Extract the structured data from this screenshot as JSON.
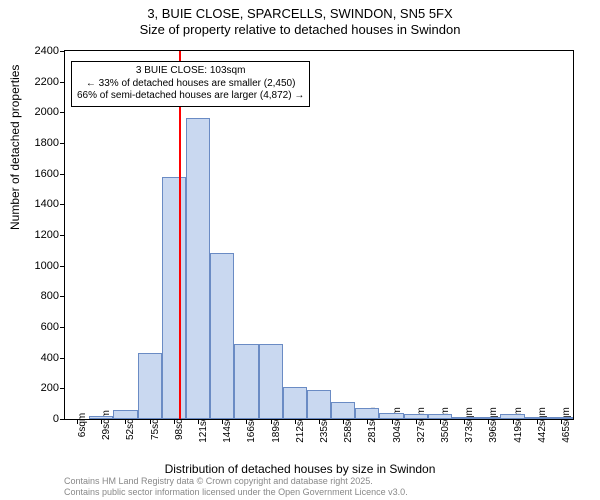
{
  "title": {
    "line1": "3, BUIE CLOSE, SPARCELLS, SWINDON, SN5 5FX",
    "line2": "Size of property relative to detached houses in Swindon"
  },
  "ylabel": "Number of detached properties",
  "xlabel": "Distribution of detached houses by size in Swindon",
  "attribution": {
    "line1": "Contains HM Land Registry data © Crown copyright and database right 2025.",
    "line2": "Contains public sector information licensed under the Open Government Licence v3.0."
  },
  "chart": {
    "type": "histogram",
    "background_color": "#ffffff",
    "border_color": "#000000",
    "bar_fill": "#c9d8f0",
    "bar_stroke": "#6a8bc4",
    "vline_color": "#ff0000",
    "ylim": [
      0,
      2400
    ],
    "yticks": [
      0,
      200,
      400,
      600,
      800,
      1000,
      1200,
      1400,
      1600,
      1800,
      2000,
      2200,
      2400
    ],
    "xticks": [
      "6sqm",
      "29sqm",
      "52sqm",
      "75sqm",
      "98sqm",
      "121sqm",
      "144sqm",
      "166sqm",
      "189sqm",
      "212sqm",
      "235sqm",
      "258sqm",
      "281sqm",
      "304sqm",
      "327sqm",
      "350sqm",
      "373sqm",
      "396sqm",
      "419sqm",
      "442sqm",
      "465sqm"
    ],
    "bars": [
      {
        "x_index": 1,
        "value": 20
      },
      {
        "x_index": 2,
        "value": 60
      },
      {
        "x_index": 3,
        "value": 430
      },
      {
        "x_index": 4,
        "value": 1580
      },
      {
        "x_index": 5,
        "value": 1960
      },
      {
        "x_index": 6,
        "value": 1080
      },
      {
        "x_index": 7,
        "value": 490
      },
      {
        "x_index": 8,
        "value": 490
      },
      {
        "x_index": 9,
        "value": 210
      },
      {
        "x_index": 10,
        "value": 190
      },
      {
        "x_index": 11,
        "value": 110
      },
      {
        "x_index": 12,
        "value": 70
      },
      {
        "x_index": 13,
        "value": 40
      },
      {
        "x_index": 14,
        "value": 30
      },
      {
        "x_index": 15,
        "value": 30
      },
      {
        "x_index": 16,
        "value": 10
      },
      {
        "x_index": 17,
        "value": 10
      },
      {
        "x_index": 18,
        "value": 30
      },
      {
        "x_index": 19,
        "value": 10
      },
      {
        "x_index": 20,
        "value": 15
      }
    ],
    "vline_x": 4.2,
    "annotation": {
      "line1": "3 BUIE CLOSE: 103sqm",
      "line2": "← 33% of detached houses are smaller (2,450)",
      "line3": "66% of semi-detached houses are larger (4,872) →"
    }
  }
}
